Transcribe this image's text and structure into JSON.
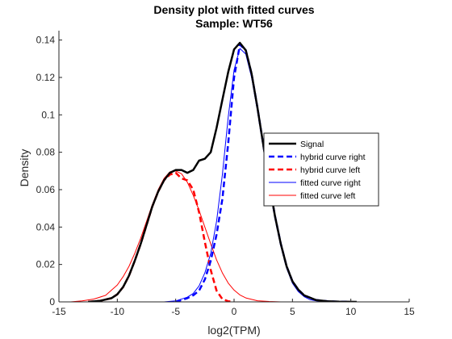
{
  "colors": {
    "signal": "#000000",
    "hybrid_right": "#0000ff",
    "hybrid_left": "#ff0000",
    "fitted_right": "#0000ff",
    "fitted_left": "#ff0000",
    "axis": "#262626",
    "background": "#ffffff"
  },
  "chart_data": {
    "type": "line",
    "title": "Density plot with fitted curves",
    "subtitle": "Sample: WT56",
    "xlabel": "log2(TPM)",
    "ylabel": "Density",
    "xlim": [
      -15,
      15
    ],
    "ylim": [
      0,
      0.145
    ],
    "xticks": [
      -15,
      -10,
      -5,
      0,
      5,
      10,
      15
    ],
    "xtick_labels": [
      "-15",
      "-10",
      "-5",
      "0",
      "5",
      "10",
      "15"
    ],
    "yticks": [
      0,
      0.02,
      0.04,
      0.06,
      0.08,
      0.1,
      0.12,
      0.14
    ],
    "ytick_labels": [
      "0",
      "0.02",
      "0.04",
      "0.06",
      "0.08",
      "0.1",
      "0.12",
      "0.14"
    ],
    "grid": false,
    "legend_position": "right",
    "series": [
      {
        "name": "Signal",
        "style": "solid-thick",
        "x": [
          -12.5,
          -11.5,
          -10.5,
          -10,
          -9.5,
          -9,
          -8.5,
          -8,
          -7.5,
          -7,
          -6.5,
          -6,
          -5.5,
          -5,
          -4.5,
          -4,
          -3.5,
          -3,
          -2.5,
          -2,
          -1.5,
          -1,
          -0.5,
          0,
          0.5,
          1,
          1.5,
          2,
          2.5,
          3,
          3.5,
          4,
          4.5,
          5,
          5.5,
          6,
          7,
          8,
          9,
          10.5
        ],
        "y": [
          0.0,
          0.0005,
          0.002,
          0.004,
          0.008,
          0.014,
          0.022,
          0.031,
          0.041,
          0.051,
          0.059,
          0.065,
          0.069,
          0.0705,
          0.0705,
          0.069,
          0.0705,
          0.0755,
          0.0765,
          0.08,
          0.093,
          0.108,
          0.123,
          0.135,
          0.1385,
          0.1345,
          0.122,
          0.104,
          0.084,
          0.064,
          0.046,
          0.031,
          0.019,
          0.011,
          0.0065,
          0.0035,
          0.001,
          0.0003,
          0.0001,
          0.0
        ]
      },
      {
        "name": "hybrid curve right",
        "style": "dashed-thick",
        "x": [
          -5,
          -4.5,
          -4,
          -3.5,
          -3,
          -2.5,
          -2,
          -1.5,
          -1,
          -0.5,
          0,
          0.5,
          1,
          1.5,
          2,
          2.5,
          3,
          3.5,
          4,
          4.5,
          5,
          5.5,
          6,
          7,
          8,
          9,
          10
        ],
        "y": [
          0.0,
          0.001,
          0.002,
          0.0035,
          0.006,
          0.012,
          0.022,
          0.036,
          0.055,
          0.085,
          0.12,
          0.1375,
          0.1345,
          0.122,
          0.104,
          0.084,
          0.064,
          0.046,
          0.031,
          0.019,
          0.011,
          0.0065,
          0.0035,
          0.001,
          0.0003,
          0.0001,
          0.0
        ]
      },
      {
        "name": "hybrid curve left",
        "style": "dashed-thick",
        "x": [
          -12.5,
          -11.5,
          -10.5,
          -10,
          -9.5,
          -9,
          -8.5,
          -8,
          -7.5,
          -7,
          -6.5,
          -6,
          -5.5,
          -5,
          -4.5,
          -4,
          -3.5,
          -3,
          -2.5,
          -2,
          -1.5,
          -1,
          -0.5,
          0
        ],
        "y": [
          0.0,
          0.0005,
          0.002,
          0.004,
          0.008,
          0.014,
          0.022,
          0.031,
          0.041,
          0.051,
          0.059,
          0.065,
          0.068,
          0.069,
          0.066,
          0.065,
          0.06,
          0.048,
          0.032,
          0.017,
          0.006,
          0.0015,
          0.0003,
          0.0
        ]
      },
      {
        "name": "fitted curve right",
        "style": "solid-thin",
        "x": [
          -6,
          -5,
          -4,
          -3.5,
          -3,
          -2.5,
          -2,
          -1.5,
          -1,
          -0.5,
          0,
          0.5,
          1,
          1.5,
          2,
          2.5,
          3,
          3.5,
          4,
          4.5,
          5,
          5.5,
          6,
          6.5,
          7,
          8,
          9,
          10.5
        ],
        "y": [
          0.0,
          0.0005,
          0.0025,
          0.0045,
          0.0085,
          0.0155,
          0.026,
          0.043,
          0.068,
          0.099,
          0.124,
          0.1355,
          0.1325,
          0.12,
          0.1025,
          0.083,
          0.063,
          0.045,
          0.03,
          0.018,
          0.01,
          0.0055,
          0.0028,
          0.0012,
          0.0006,
          0.0001,
          0.0,
          0.0
        ]
      },
      {
        "name": "fitted curve left",
        "style": "solid-thin",
        "x": [
          -14,
          -13,
          -12,
          -11,
          -10,
          -9.5,
          -9,
          -8.5,
          -8,
          -7.5,
          -7,
          -6.5,
          -6,
          -5.5,
          -5,
          -4.5,
          -4,
          -3.5,
          -3,
          -2.5,
          -2,
          -1.5,
          -1,
          -0.5,
          0,
          0.5,
          1,
          2,
          3,
          4,
          5
        ],
        "y": [
          0.0,
          0.0005,
          0.0015,
          0.0035,
          0.009,
          0.0135,
          0.019,
          0.026,
          0.034,
          0.043,
          0.052,
          0.06,
          0.066,
          0.0695,
          0.07,
          0.0685,
          0.064,
          0.057,
          0.049,
          0.04,
          0.031,
          0.0225,
          0.0155,
          0.01,
          0.0063,
          0.0037,
          0.0021,
          0.0006,
          0.0002,
          0.0,
          0.0
        ]
      }
    ]
  }
}
